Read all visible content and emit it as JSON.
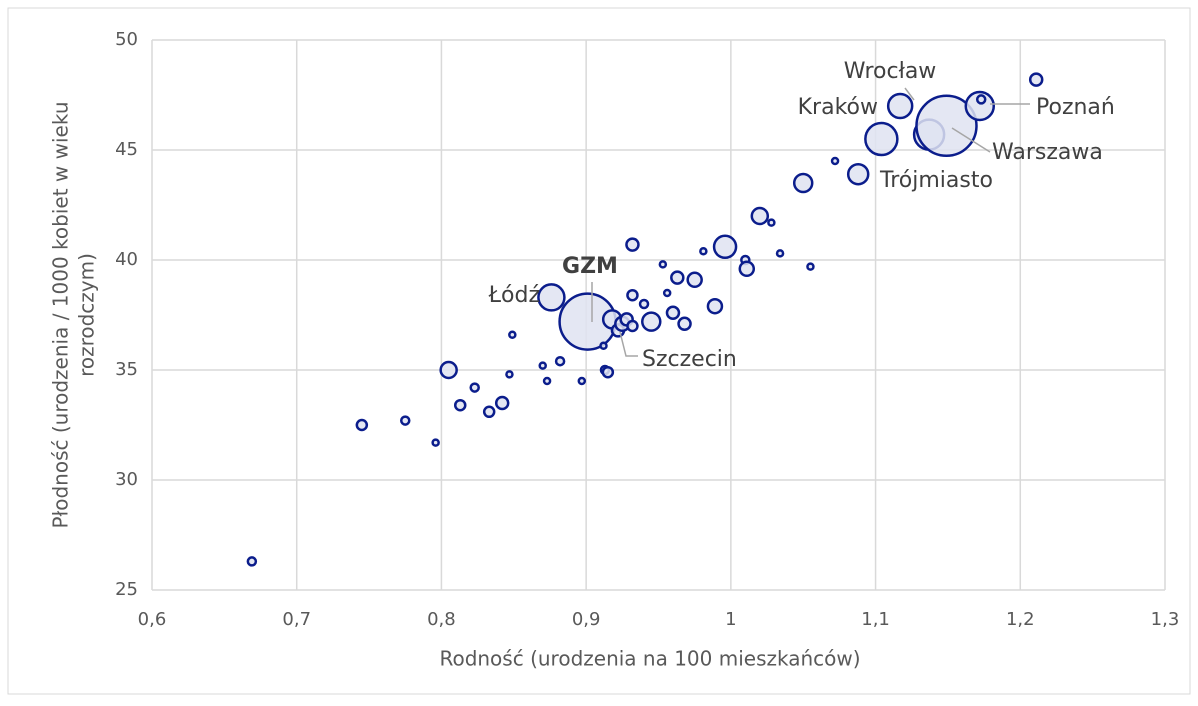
{
  "chart_data": {
    "type": "bubble",
    "xlabel": "Rodność (urodzenia na 100 mieszkańców)",
    "ylabel": [
      "Płodność (urodzenia / 1000 kobiet w wieku",
      "rozrodczym)"
    ],
    "xlim": [
      0.6,
      1.3
    ],
    "xticks": [
      {
        "value": 0.6,
        "label": "0,6"
      },
      {
        "value": 0.7,
        "label": "0,7"
      },
      {
        "value": 0.8,
        "label": "0,8"
      },
      {
        "value": 0.9,
        "label": "0,9"
      },
      1,
      {
        "value": 1.1,
        "label": "1,1"
      },
      {
        "value": 1.2,
        "label": "1,2"
      },
      {
        "value": 1.3,
        "label": "1,3"
      }
    ],
    "ylim": [
      25,
      50
    ],
    "yticks": [
      25,
      30,
      35,
      40,
      45,
      50
    ],
    "grid": true,
    "marker_fill": "#dfe3f1",
    "marker_edge": "#0b1d8c",
    "x": [
      0.669,
      0.745,
      0.775,
      0.796,
      0.805,
      0.813,
      0.823,
      0.833,
      0.842,
      0.847,
      0.849,
      0.87,
      0.873,
      0.876,
      0.882,
      0.897,
      0.901,
      0.912,
      0.913,
      0.915,
      0.918,
      0.922,
      0.925,
      0.928,
      0.932,
      0.932,
      0.932,
      0.94,
      0.945,
      0.953,
      0.956,
      0.96,
      0.963,
      0.968,
      0.975,
      0.981,
      0.989,
      0.996,
      1.01,
      1.011,
      1.02,
      1.028,
      1.034,
      1.05,
      1.055,
      1.072,
      1.088,
      1.104,
      1.117,
      1.137,
      1.149,
      1.172,
      1.173,
      1.211
    ],
    "values": [
      26.3,
      32.5,
      32.7,
      31.7,
      35.0,
      33.4,
      34.2,
      33.1,
      33.5,
      34.8,
      36.6,
      35.2,
      34.5,
      38.3,
      35.4,
      34.5,
      37.2,
      36.1,
      35.0,
      34.9,
      37.3,
      36.8,
      37.1,
      37.3,
      37.0,
      38.4,
      40.7,
      38.0,
      37.2,
      39.8,
      38.5,
      37.6,
      39.2,
      37.1,
      39.1,
      40.4,
      37.9,
      40.6,
      40.0,
      39.6,
      42.0,
      41.7,
      40.3,
      43.5,
      39.7,
      44.5,
      43.9,
      45.5,
      47.0,
      45.7,
      46.1,
      47.0,
      47.3,
      48.2
    ],
    "sizes": [
      32,
      50,
      32,
      18,
      128,
      50,
      32,
      50,
      72,
      18,
      18,
      18,
      18,
      338,
      32,
      18,
      1568,
      18,
      32,
      50,
      162,
      72,
      98,
      72,
      50,
      50,
      72,
      32,
      162,
      18,
      18,
      72,
      72,
      72,
      98,
      18,
      98,
      242,
      32,
      98,
      128,
      18,
      18,
      162,
      18,
      18,
      200,
      512,
      288,
      450,
      1800,
      392,
      32,
      72
    ],
    "annotations": [
      "Wrocław",
      "Kraków",
      "Poznań",
      "Warszawa",
      "Trójmiasto",
      "GZM",
      "Łódź",
      "Szczecin"
    ]
  }
}
